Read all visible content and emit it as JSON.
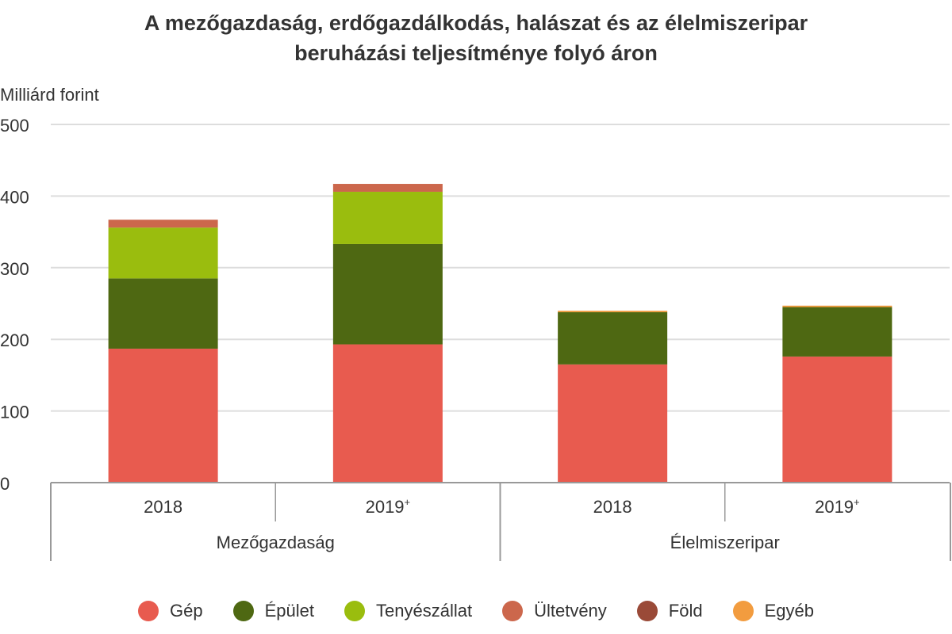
{
  "chart_data": {
    "type": "bar",
    "stacked": true,
    "title_line1": "A mezőgazdaság, erdőgazdálkodás, halászat és az élelmiszeripar",
    "title_line2": "beruházási teljesítménye folyó áron",
    "ylabel": "Milliárd forint",
    "ylim": [
      0,
      500
    ],
    "yticks": [
      0,
      100,
      200,
      300,
      400,
      500
    ],
    "grid": true,
    "groups": [
      {
        "label": "Mezőgazdaság",
        "categories": [
          "2018",
          "2019+"
        ]
      },
      {
        "label": "Élelmiszeripar",
        "categories": [
          "2018",
          "2019+"
        ]
      }
    ],
    "categories": [
      "Mezőgazdaság 2018",
      "Mezőgazdaság 2019+",
      "Élelmiszeripar 2018",
      "Élelmiszeripar 2019+"
    ],
    "category_tick_labels": [
      "2018",
      "2019",
      "2018",
      "2019"
    ],
    "category_tick_superscripts": [
      "",
      "+",
      "",
      "+"
    ],
    "series": [
      {
        "name": "Gép",
        "color": "#e85b4f",
        "values": [
          187,
          193,
          165,
          176
        ]
      },
      {
        "name": "Épület",
        "color": "#4e6812",
        "values": [
          98,
          140,
          73,
          69
        ]
      },
      {
        "name": "Tenyészállat",
        "color": "#9abd0e",
        "values": [
          71,
          73,
          0,
          0
        ]
      },
      {
        "name": "Ültetvény",
        "color": "#cc674c",
        "values": [
          11,
          11,
          0,
          0
        ]
      },
      {
        "name": "Föld",
        "color": "#9a4a38",
        "values": [
          0,
          0,
          0,
          0
        ]
      },
      {
        "name": "Egyéb",
        "color": "#f29c3f",
        "values": [
          0,
          0,
          2,
          2
        ]
      }
    ],
    "legend_position": "bottom"
  }
}
